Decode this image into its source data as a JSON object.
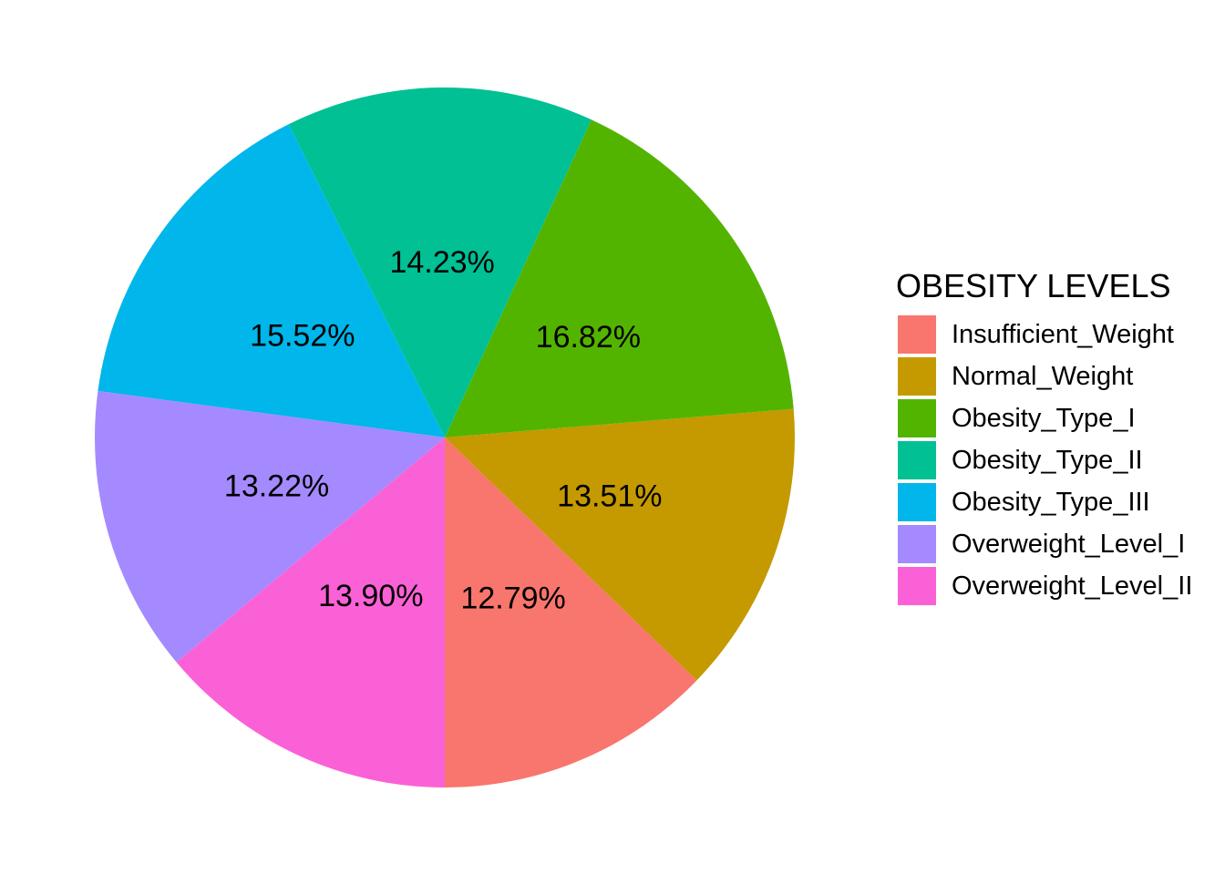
{
  "chart_data": {
    "type": "pie",
    "legend": {
      "title": "OBESITY LEVELS",
      "placement": "right"
    },
    "slices": [
      {
        "name": "Insufficient_Weight",
        "value": 12.79,
        "label": "12.79%",
        "color": "#F8766D"
      },
      {
        "name": "Normal_Weight",
        "value": 13.51,
        "label": "13.51%",
        "color": "#C49A00"
      },
      {
        "name": "Obesity_Type_I",
        "value": 16.82,
        "label": "16.82%",
        "color": "#53B400"
      },
      {
        "name": "Obesity_Type_II",
        "value": 14.23,
        "label": "14.23%",
        "color": "#00C094"
      },
      {
        "name": "Obesity_Type_III",
        "value": 15.52,
        "label": "15.52%",
        "color": "#00B6EB"
      },
      {
        "name": "Overweight_Level_I",
        "value": 13.22,
        "label": "13.22%",
        "color": "#A58AFF"
      },
      {
        "name": "Overweight_Level_II",
        "value": 13.9,
        "label": "13.90%",
        "color": "#FB61D7"
      }
    ],
    "direction": "counterclockwise",
    "start": "bottom"
  }
}
